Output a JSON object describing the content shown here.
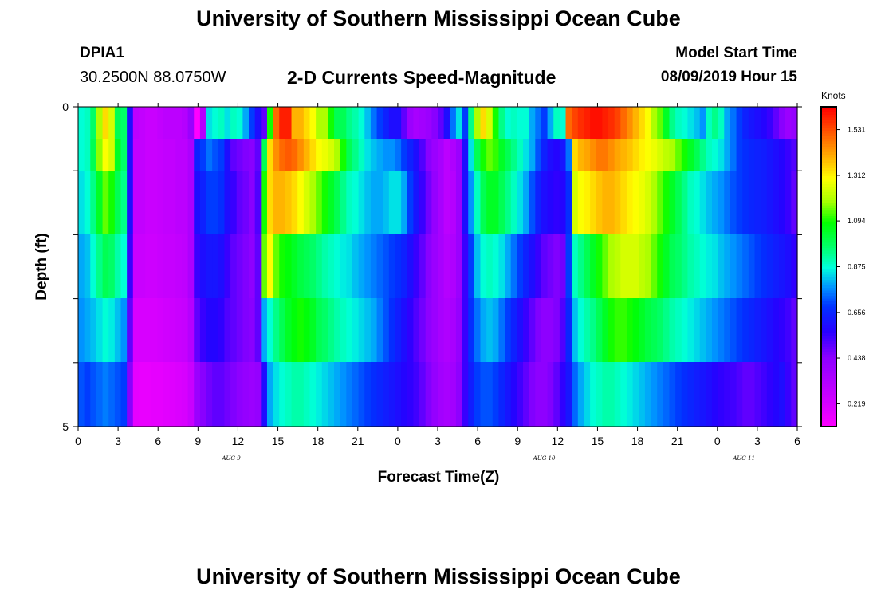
{
  "header": {
    "title": "University of Southern Mississippi Ocean Cube",
    "station_id": "DPIA1",
    "station_coords": "30.2500N 88.0750W",
    "chart_title": "2-D Currents Speed-Magnitude",
    "model_start_label": "Model Start Time",
    "model_start_value": "08/09/2019 Hour 15"
  },
  "footer": {
    "title": "University of Southern Mississippi Ocean Cube"
  },
  "chart_data": {
    "type": "heatmap",
    "title": "2-D Currents Speed-Magnitude",
    "xlabel": "Forecast Time(Z)",
    "ylabel": "Depth (ft)",
    "ylim": [
      0,
      5
    ],
    "y_tick_labels": [
      "0",
      "5"
    ],
    "x_tick_labels": [
      "0",
      "3",
      "6",
      "9",
      "12",
      "15",
      "18",
      "21",
      "0",
      "3",
      "6",
      "9",
      "12",
      "15",
      "18",
      "21",
      "0",
      "3",
      "6"
    ],
    "date_labels": [
      {
        "text": "AUG 9",
        "hour": 11.5
      },
      {
        "text": "AUG 10",
        "hour": 35
      },
      {
        "text": "AUG 11",
        "hour": 50
      }
    ],
    "colorbar": {
      "unit": "Knots",
      "ticks": [
        "1.531",
        "1.312",
        "1.094",
        "0.875",
        "0.656",
        "0.438",
        "0.219"
      ],
      "min": 0.11,
      "max": 1.64
    },
    "hours_start": 0,
    "hours_end": 54,
    "depth_layers": [
      "0-0.5",
      "0.5-1",
      "1-2",
      "2-3",
      "3-4",
      "4-5"
    ],
    "values": [
      [
        0.88,
        0.9,
        0.98,
        1.2,
        1.35,
        1.25,
        1.0,
        0.98,
        0.6,
        0.3,
        0.28,
        0.26,
        0.26,
        0.28,
        0.3,
        0.3,
        0.3,
        0.32,
        0.4,
        0.1,
        0.32,
        0.85,
        0.88,
        0.9,
        0.85,
        0.9,
        0.88,
        0.8,
        0.7,
        0.6,
        0.5,
        1.1,
        1.5,
        1.6,
        1.6,
        1.4,
        1.4,
        1.35,
        1.3,
        1.2,
        1.2,
        1.1,
        1.0,
        1.0,
        0.95,
        0.92,
        0.88,
        0.82,
        0.75,
        0.7,
        0.65,
        0.6,
        0.6,
        0.5,
        0.4,
        0.36,
        0.38,
        0.4,
        0.45,
        0.5,
        0.6,
        0.75,
        0.85,
        0.7,
        0.95,
        1.2,
        1.35,
        1.25,
        1.1,
        0.95,
        0.88,
        0.9,
        0.88,
        0.88,
        0.8,
        0.75,
        0.7,
        0.8,
        0.9,
        0.88,
        1.5,
        1.55,
        1.58,
        1.6,
        1.62,
        1.62,
        1.6,
        1.58,
        1.55,
        1.5,
        1.45,
        1.4,
        1.35,
        1.3,
        1.2,
        1.15,
        1.05,
        0.95,
        0.9,
        0.88,
        0.85,
        0.82,
        0.78,
        0.9,
        0.95,
        0.9,
        0.8,
        0.75,
        0.7,
        0.65,
        0.62,
        0.6,
        0.58,
        0.55,
        0.5,
        0.45,
        0.4,
        0.42
      ],
      [
        0.88,
        0.9,
        1.0,
        1.18,
        1.3,
        1.25,
        1.05,
        0.98,
        0.6,
        0.28,
        0.28,
        0.26,
        0.26,
        0.27,
        0.28,
        0.28,
        0.3,
        0.3,
        0.35,
        0.65,
        0.7,
        0.75,
        0.72,
        0.7,
        0.6,
        0.5,
        0.48,
        0.46,
        0.45,
        0.5,
        1.0,
        1.35,
        1.45,
        1.5,
        1.52,
        1.5,
        1.45,
        1.4,
        1.35,
        1.3,
        1.28,
        1.25,
        1.2,
        1.1,
        1.0,
        0.95,
        0.9,
        0.85,
        0.82,
        0.8,
        0.78,
        0.78,
        0.75,
        0.7,
        0.65,
        0.6,
        0.52,
        0.45,
        0.4,
        0.36,
        0.3,
        0.34,
        0.4,
        0.6,
        0.85,
        1.0,
        1.1,
        1.15,
        1.12,
        1.05,
        1.0,
        0.95,
        0.9,
        0.85,
        0.8,
        0.72,
        0.65,
        0.6,
        0.58,
        0.62,
        0.75,
        1.35,
        1.4,
        1.42,
        1.45,
        1.48,
        1.48,
        1.45,
        1.42,
        1.4,
        1.38,
        1.35,
        1.32,
        1.3,
        1.28,
        1.25,
        1.22,
        1.2,
        1.15,
        1.1,
        1.05,
        1.0,
        0.95,
        0.9,
        0.88,
        0.85,
        0.8,
        0.75,
        0.7,
        0.68,
        0.66,
        0.65,
        0.64,
        0.62,
        0.6,
        0.58,
        0.55,
        0.52
      ],
      [
        0.85,
        0.88,
        0.95,
        1.05,
        1.15,
        1.1,
        1.0,
        0.95,
        0.6,
        0.28,
        0.28,
        0.26,
        0.26,
        0.27,
        0.28,
        0.28,
        0.3,
        0.3,
        0.35,
        0.6,
        0.65,
        0.7,
        0.7,
        0.68,
        0.6,
        0.55,
        0.5,
        0.48,
        0.45,
        0.52,
        1.1,
        1.35,
        1.4,
        1.4,
        1.38,
        1.35,
        1.3,
        1.25,
        1.2,
        1.15,
        1.1,
        1.05,
        1.0,
        0.95,
        0.9,
        0.88,
        0.85,
        0.82,
        0.8,
        0.8,
        0.82,
        0.85,
        0.85,
        0.8,
        0.7,
        0.62,
        0.55,
        0.48,
        0.42,
        0.36,
        0.3,
        0.32,
        0.4,
        0.6,
        0.78,
        0.9,
        1.0,
        1.05,
        1.05,
        1.0,
        0.95,
        0.9,
        0.85,
        0.8,
        0.72,
        0.65,
        0.6,
        0.58,
        0.56,
        0.58,
        0.68,
        1.25,
        1.3,
        1.32,
        1.35,
        1.38,
        1.4,
        1.4,
        1.38,
        1.35,
        1.32,
        1.3,
        1.28,
        1.25,
        1.2,
        1.15,
        1.1,
        1.05,
        1.0,
        0.95,
        0.9,
        0.88,
        0.85,
        0.82,
        0.8,
        0.78,
        0.75,
        0.72,
        0.7,
        0.68,
        0.66,
        0.65,
        0.64,
        0.62,
        0.6,
        0.58,
        0.55,
        0.5
      ],
      [
        0.8,
        0.82,
        0.88,
        0.95,
        1.0,
        0.98,
        0.92,
        0.88,
        0.55,
        0.26,
        0.26,
        0.25,
        0.25,
        0.26,
        0.27,
        0.27,
        0.28,
        0.29,
        0.35,
        0.55,
        0.6,
        0.62,
        0.62,
        0.6,
        0.55,
        0.5,
        0.48,
        0.46,
        0.44,
        0.5,
        1.15,
        1.3,
        1.15,
        1.1,
        1.08,
        1.05,
        1.02,
        1.0,
        0.98,
        0.95,
        0.92,
        0.9,
        0.88,
        0.86,
        0.85,
        0.82,
        0.8,
        0.78,
        0.76,
        0.74,
        0.72,
        0.7,
        0.68,
        0.65,
        0.6,
        0.55,
        0.5,
        0.45,
        0.4,
        0.36,
        0.32,
        0.34,
        0.4,
        0.55,
        0.7,
        0.82,
        0.88,
        0.9,
        0.88,
        0.85,
        0.8,
        0.75,
        0.7,
        0.65,
        0.6,
        0.55,
        0.5,
        0.48,
        0.46,
        0.48,
        0.7,
        0.9,
        0.95,
        1.0,
        1.05,
        1.1,
        1.15,
        1.2,
        1.22,
        1.25,
        1.25,
        1.25,
        1.22,
        1.2,
        1.15,
        1.1,
        1.05,
        1.0,
        0.98,
        0.95,
        0.92,
        0.9,
        0.88,
        0.86,
        0.85,
        0.82,
        0.8,
        0.78,
        0.76,
        0.74,
        0.72,
        0.7,
        0.68,
        0.66,
        0.64,
        0.62,
        0.6,
        0.56
      ],
      [
        0.78,
        0.8,
        0.82,
        0.85,
        0.88,
        0.86,
        0.82,
        0.78,
        0.5,
        0.22,
        0.22,
        0.22,
        0.22,
        0.23,
        0.24,
        0.25,
        0.26,
        0.27,
        0.32,
        0.5,
        0.55,
        0.58,
        0.58,
        0.56,
        0.52,
        0.5,
        0.48,
        0.46,
        0.45,
        0.5,
        0.8,
        0.88,
        0.95,
        1.0,
        1.05,
        1.08,
        1.1,
        1.08,
        1.05,
        1.0,
        0.98,
        0.95,
        0.92,
        0.9,
        0.88,
        0.86,
        0.84,
        0.82,
        0.8,
        0.76,
        0.72,
        0.68,
        0.64,
        0.6,
        0.56,
        0.52,
        0.48,
        0.44,
        0.4,
        0.36,
        0.34,
        0.36,
        0.42,
        0.55,
        0.68,
        0.75,
        0.8,
        0.82,
        0.8,
        0.75,
        0.7,
        0.65,
        0.6,
        0.55,
        0.5,
        0.46,
        0.44,
        0.44,
        0.46,
        0.52,
        0.66,
        0.82,
        0.88,
        0.92,
        0.95,
        1.0,
        1.05,
        1.1,
        1.12,
        1.12,
        1.1,
        1.08,
        1.05,
        1.02,
        1.0,
        0.98,
        0.95,
        0.92,
        0.9,
        0.88,
        0.86,
        0.84,
        0.82,
        0.8,
        0.78,
        0.76,
        0.74,
        0.72,
        0.7,
        0.68,
        0.66,
        0.64,
        0.62,
        0.6,
        0.58,
        0.56,
        0.54,
        0.5
      ],
      [
        0.72,
        0.7,
        0.72,
        0.74,
        0.76,
        0.74,
        0.72,
        0.7,
        0.45,
        0.18,
        0.17,
        0.17,
        0.18,
        0.18,
        0.19,
        0.2,
        0.21,
        0.22,
        0.26,
        0.4,
        0.45,
        0.48,
        0.5,
        0.5,
        0.48,
        0.46,
        0.44,
        0.42,
        0.4,
        0.42,
        0.6,
        0.8,
        0.85,
        0.88,
        0.9,
        0.92,
        0.92,
        0.9,
        0.88,
        0.86,
        0.84,
        0.82,
        0.8,
        0.78,
        0.76,
        0.74,
        0.72,
        0.7,
        0.68,
        0.66,
        0.64,
        0.62,
        0.6,
        0.58,
        0.56,
        0.54,
        0.5,
        0.46,
        0.42,
        0.38,
        0.36,
        0.38,
        0.44,
        0.55,
        0.64,
        0.7,
        0.72,
        0.72,
        0.7,
        0.66,
        0.62,
        0.58,
        0.54,
        0.5,
        0.46,
        0.44,
        0.44,
        0.46,
        0.5,
        0.56,
        0.62,
        0.74,
        0.8,
        0.84,
        0.88,
        0.9,
        0.92,
        0.92,
        0.9,
        0.88,
        0.86,
        0.84,
        0.82,
        0.8,
        0.78,
        0.76,
        0.74,
        0.72,
        0.7,
        0.68,
        0.66,
        0.64,
        0.62,
        0.6,
        0.58,
        0.56,
        0.55,
        0.54,
        0.52,
        0.5,
        0.5,
        0.52,
        0.54,
        0.56,
        0.58,
        0.6,
        0.55,
        0.5
      ]
    ]
  }
}
